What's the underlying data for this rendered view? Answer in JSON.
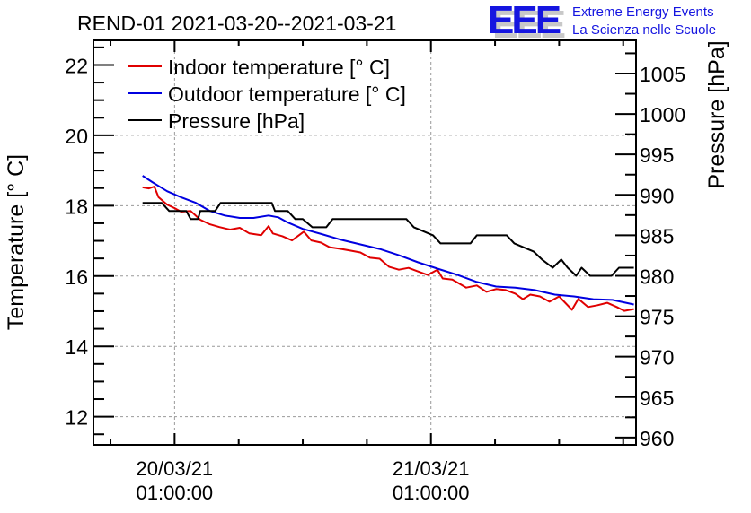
{
  "chart_data": {
    "type": "line",
    "title": "REND-01 2021-03-20--2021-03-21",
    "xlabel": "",
    "ylabel": "Temperature [° C]",
    "y2label": "Pressure [hPa]",
    "x_unit": "hours since 20/03/21 01:00:00",
    "xlim": [
      -7.6,
      43.2
    ],
    "ylim": [
      11.2,
      22.7
    ],
    "y2lim": [
      959.1,
      1009.1
    ],
    "grid": true,
    "legend_position": "top-left",
    "x_ticks": [
      {
        "value": 0,
        "label_line1": "20/03/21",
        "label_line2": "01:00:00"
      },
      {
        "value": 24,
        "label_line1": "21/03/21",
        "label_line2": "01:00:00"
      }
    ],
    "y_ticks": [
      "12",
      "14",
      "16",
      "18",
      "20",
      "22"
    ],
    "y2_ticks": [
      "960",
      "965",
      "970",
      "975",
      "980",
      "985",
      "990",
      "995",
      "1000",
      "1005"
    ],
    "series": [
      {
        "name": "Indoor temperature [° C]",
        "axis": "left",
        "color": "#e00000",
        "x": [
          -3.0,
          -2.4,
          -1.9,
          -1.5,
          -0.7,
          0.0,
          0.6,
          1.5,
          2.4,
          3.3,
          4.2,
          5.2,
          6.1,
          7.0,
          8.1,
          8.8,
          9.2,
          10.1,
          11.0,
          12.1,
          12.8,
          13.7,
          14.5,
          15.6,
          16.5,
          17.4,
          18.3,
          19.2,
          20.1,
          21.0,
          21.9,
          22.8,
          23.7,
          24.6,
          25.1,
          26.0,
          27.3,
          28.3,
          29.2,
          30.1,
          31.0,
          31.9,
          32.6,
          33.3,
          34.2,
          35.1,
          36.0,
          37.2,
          37.8,
          38.7,
          39.6,
          40.5,
          41.4,
          42.1,
          43.0
        ],
        "values": [
          18.52,
          18.49,
          18.54,
          18.24,
          18.03,
          17.93,
          17.83,
          17.85,
          17.6,
          17.47,
          17.39,
          17.32,
          17.37,
          17.21,
          17.16,
          17.42,
          17.21,
          17.13,
          17.01,
          17.26,
          17.01,
          16.95,
          16.82,
          16.77,
          16.72,
          16.67,
          16.52,
          16.49,
          16.26,
          16.18,
          16.23,
          16.13,
          16.03,
          16.18,
          15.93,
          15.9,
          15.67,
          15.73,
          15.55,
          15.63,
          15.6,
          15.5,
          15.34,
          15.47,
          15.42,
          15.27,
          15.42,
          15.04,
          15.35,
          15.12,
          15.17,
          15.24,
          15.12,
          15.01,
          15.06
        ]
      },
      {
        "name": "Outdoor temperature [° C]",
        "axis": "left",
        "color": "#0000e0",
        "x": [
          -3.0,
          -2.1,
          -0.7,
          0.6,
          2.0,
          3.3,
          4.7,
          6.1,
          7.4,
          8.8,
          9.7,
          10.6,
          12.0,
          13.8,
          15.6,
          17.4,
          19.2,
          21.0,
          22.8,
          24.6,
          26.5,
          28.3,
          30.1,
          31.9,
          33.7,
          35.6,
          37.4,
          39.2,
          41.0,
          43.0
        ],
        "values": [
          18.85,
          18.67,
          18.41,
          18.24,
          18.08,
          17.85,
          17.72,
          17.65,
          17.65,
          17.72,
          17.67,
          17.52,
          17.34,
          17.19,
          17.03,
          16.9,
          16.77,
          16.59,
          16.39,
          16.21,
          16.03,
          15.83,
          15.7,
          15.67,
          15.6,
          15.47,
          15.42,
          15.34,
          15.32,
          15.19
        ]
      },
      {
        "name": "Pressure [hPa]",
        "axis": "right",
        "color": "#000000",
        "x": [
          -3.0,
          -1.2,
          -0.5,
          1.1,
          1.5,
          2.2,
          2.4,
          3.8,
          4.3,
          9.1,
          9.4,
          10.6,
          11.3,
          12.0,
          12.9,
          14.2,
          14.8,
          16.3,
          21.7,
          22.4,
          24.2,
          24.9,
          25.6,
          27.7,
          28.3,
          31.1,
          31.8,
          33.6,
          34.4,
          35.4,
          36.2,
          36.8,
          37.6,
          38.1,
          38.9,
          40.9,
          41.6,
          43.0
        ],
        "values": [
          989,
          989,
          988,
          988,
          987,
          987,
          988,
          988,
          989,
          989,
          988,
          988,
          987,
          987,
          986,
          986,
          987,
          987,
          987,
          986,
          985,
          984,
          984,
          984,
          985,
          985,
          984,
          983,
          982,
          981,
          982,
          981,
          980,
          981,
          980,
          980,
          981,
          981
        ]
      }
    ]
  },
  "logo": {
    "letters": "EEE",
    "line1": "Extreme Energy Events",
    "line2": "La Scienza nelle Scuole",
    "color": "#1515e0",
    "shadow_color": "#c8c8c8"
  }
}
